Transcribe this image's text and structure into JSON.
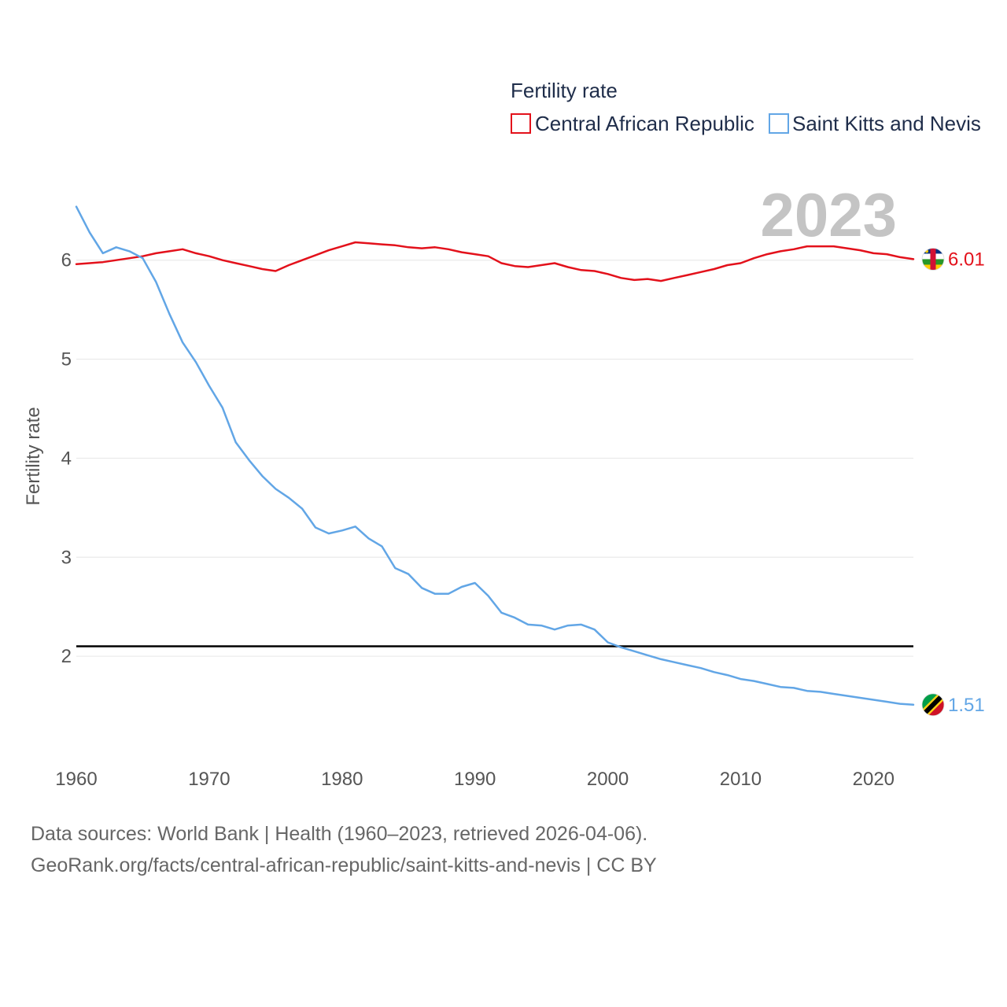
{
  "chart_data": {
    "type": "line",
    "title": "Fertility rate",
    "ylabel": "Fertility rate",
    "xlabel": "",
    "year_label": "2023",
    "xlim": [
      1960,
      2023
    ],
    "ylim": [
      1.0,
      6.8
    ],
    "x_ticks": [
      1960,
      1970,
      1980,
      1990,
      2000,
      2010,
      2020
    ],
    "y_ticks": [
      2,
      3,
      4,
      5,
      6
    ],
    "reference_line": 2.1,
    "grid": true,
    "legend_position": "top-right",
    "x": [
      1960,
      1961,
      1962,
      1963,
      1964,
      1965,
      1966,
      1967,
      1968,
      1969,
      1970,
      1971,
      1972,
      1973,
      1974,
      1975,
      1976,
      1977,
      1978,
      1979,
      1980,
      1981,
      1982,
      1983,
      1984,
      1985,
      1986,
      1987,
      1988,
      1989,
      1990,
      1991,
      1992,
      1993,
      1994,
      1995,
      1996,
      1997,
      1998,
      1999,
      2000,
      2001,
      2002,
      2003,
      2004,
      2005,
      2006,
      2007,
      2008,
      2009,
      2010,
      2011,
      2012,
      2013,
      2014,
      2015,
      2016,
      2017,
      2018,
      2019,
      2020,
      2021,
      2022,
      2023
    ],
    "series": [
      {
        "name": "Central African Republic",
        "color": "#e3111b",
        "end_label": "6.01",
        "flag": "Central African Republic flag",
        "values": [
          5.96,
          5.97,
          5.98,
          6.0,
          6.02,
          6.04,
          6.07,
          6.09,
          6.11,
          6.07,
          6.04,
          6.0,
          5.97,
          5.94,
          5.91,
          5.89,
          5.95,
          6.0,
          6.05,
          6.1,
          6.14,
          6.18,
          6.17,
          6.16,
          6.15,
          6.13,
          6.12,
          6.13,
          6.11,
          6.08,
          6.06,
          6.04,
          5.97,
          5.94,
          5.93,
          5.95,
          5.97,
          5.93,
          5.9,
          5.89,
          5.86,
          5.82,
          5.8,
          5.81,
          5.79,
          5.82,
          5.85,
          5.88,
          5.91,
          5.95,
          5.97,
          6.02,
          6.06,
          6.09,
          6.11,
          6.14,
          6.14,
          6.14,
          6.12,
          6.1,
          6.07,
          6.06,
          6.03,
          6.01
        ]
      },
      {
        "name": "Saint Kitts and Nevis",
        "color": "#62a6e6",
        "end_label": "1.51",
        "flag": "Saint Kitts and Nevis flag",
        "values": [
          6.54,
          6.28,
          6.07,
          6.13,
          6.09,
          6.02,
          5.78,
          5.46,
          5.17,
          4.97,
          4.73,
          4.51,
          4.16,
          3.98,
          3.82,
          3.69,
          3.6,
          3.49,
          3.3,
          3.24,
          3.27,
          3.31,
          3.19,
          3.11,
          2.89,
          2.83,
          2.69,
          2.63,
          2.63,
          2.7,
          2.74,
          2.61,
          2.44,
          2.39,
          2.32,
          2.31,
          2.27,
          2.31,
          2.32,
          2.27,
          2.14,
          2.09,
          2.05,
          2.01,
          1.97,
          1.94,
          1.91,
          1.88,
          1.84,
          1.81,
          1.77,
          1.75,
          1.72,
          1.69,
          1.68,
          1.65,
          1.64,
          1.62,
          1.6,
          1.58,
          1.56,
          1.54,
          1.52,
          1.51
        ]
      }
    ]
  },
  "footer": {
    "source_line": "Data sources: World Bank | Health (1960–2023, retrieved 2026-04-06).",
    "link_line": "GeoRank.org/facts/central-african-republic/saint-kitts-and-nevis | CC BY"
  }
}
